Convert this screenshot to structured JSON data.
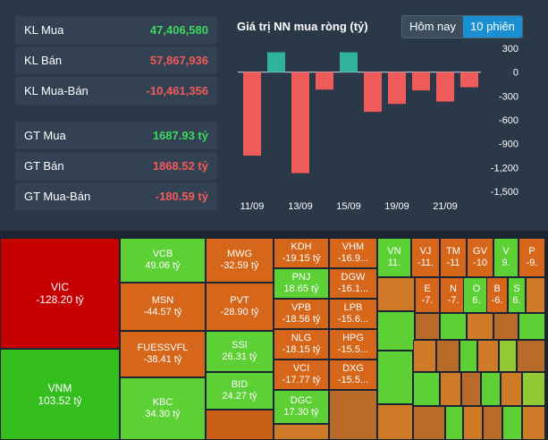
{
  "stats": [
    {
      "label": "KL Mua",
      "value": "47,406,580",
      "color": "green"
    },
    {
      "label": "KL Bán",
      "value": "57,867,936",
      "color": "red"
    },
    {
      "label": "KL Mua-Bán",
      "value": "-10,461,356",
      "color": "red"
    },
    {
      "label": "GT Mua",
      "value": "1687.93 tỷ",
      "color": "green"
    },
    {
      "label": "GT Bán",
      "value": "1868.52 tỷ",
      "color": "red"
    },
    {
      "label": "GT Mua-Bán",
      "value": "-180.59 tỷ",
      "color": "red"
    }
  ],
  "chart_title": "Giá trị NN mua ròng (tỷ)",
  "tabs": [
    "Hôm nay",
    "10 phiên"
  ],
  "active_tab": "10 phiên",
  "chart_data": {
    "type": "bar",
    "title": "Giá trị NN mua ròng (tỷ)",
    "values": [
      -1050,
      250,
      -1270,
      -220,
      250,
      -500,
      -400,
      -230,
      -370,
      -190
    ],
    "xtick_labels": [
      "11/09",
      "13/09",
      "15/09",
      "19/09",
      "21/09"
    ],
    "xtick_bars": [
      0,
      2,
      4,
      6,
      8
    ],
    "ylim": [
      -1500,
      300
    ],
    "yticks": [
      300,
      0,
      -300,
      -600,
      -900,
      -1200,
      -1500
    ],
    "ytick_labels": [
      "300",
      "0",
      "-300",
      "-600",
      "-900",
      "-1,200",
      "-1,500"
    ],
    "positive_color": "#2fb39a",
    "negative_color": "#ef5a5a"
  },
  "heatmap": {
    "cells": [
      {
        "t": "VIC",
        "v": "-128.20 tỷ",
        "c": "cR",
        "big": true
      },
      {
        "t": "VNM",
        "v": "103.52 tỷ",
        "c": "cG",
        "big": true
      },
      {
        "t": "VCB",
        "v": "49.06 tỷ",
        "c": "cG2"
      },
      {
        "t": "MSN",
        "v": "-44.57 tỷ",
        "c": "cO"
      },
      {
        "t": "FUESSVFL",
        "v": "-38.41 tỷ",
        "c": "cO"
      },
      {
        "t": "KBC",
        "v": "34.30 tỷ",
        "c": "cG2"
      },
      {
        "t": "MWG",
        "v": "-32.59 tỷ",
        "c": "cO"
      },
      {
        "t": "PVT",
        "v": "-28.90 tỷ",
        "c": "cO"
      },
      {
        "t": "SSI",
        "v": "26.31 tỷ",
        "c": "cG2"
      },
      {
        "t": "BID",
        "v": "24.27 tỷ",
        "c": "cG2"
      },
      {
        "t": "KDH",
        "v": "-19.15 tỷ",
        "c": "cO"
      },
      {
        "t": "PNJ",
        "v": "18.65 tỷ",
        "c": "cG2"
      },
      {
        "t": "VPB",
        "v": "-18.56 tỷ",
        "c": "cO"
      },
      {
        "t": "NLG",
        "v": "-18.15 tỷ",
        "c": "cO"
      },
      {
        "t": "VCI",
        "v": "-17.77 tỷ",
        "c": "cO"
      },
      {
        "t": "DGC",
        "v": "17.30 tỷ",
        "c": "cG2"
      },
      {
        "t": "VHM",
        "v": "-16.9...",
        "c": "cO"
      },
      {
        "t": "DGW",
        "v": "-16.1...",
        "c": "cO"
      },
      {
        "t": "LPB",
        "v": "-15.6...",
        "c": "cO"
      },
      {
        "t": "HPG",
        "v": "-15.5...",
        "c": "cO"
      },
      {
        "t": "DXG",
        "v": "-15.5...",
        "c": "cO"
      },
      {
        "t": "VN",
        "v": "11.",
        "c": "cG2"
      },
      {
        "t": "VJ",
        "v": "-11.",
        "c": "cO"
      },
      {
        "t": "TM",
        "v": "-11",
        "c": "cO"
      },
      {
        "t": "GV",
        "v": "-10",
        "c": "cO"
      },
      {
        "t": "V",
        "v": "9.",
        "c": "cG2"
      },
      {
        "t": "P",
        "v": "-9.",
        "c": "cO"
      },
      {
        "t": "E",
        "v": "-7.",
        "c": "cO"
      },
      {
        "t": "N",
        "v": "-7.",
        "c": "cO"
      },
      {
        "t": "O",
        "v": "6.",
        "c": "cG2"
      },
      {
        "t": "B",
        "v": "-6.",
        "c": "cO"
      },
      {
        "t": "S",
        "v": "6.",
        "c": "cG2"
      }
    ]
  }
}
